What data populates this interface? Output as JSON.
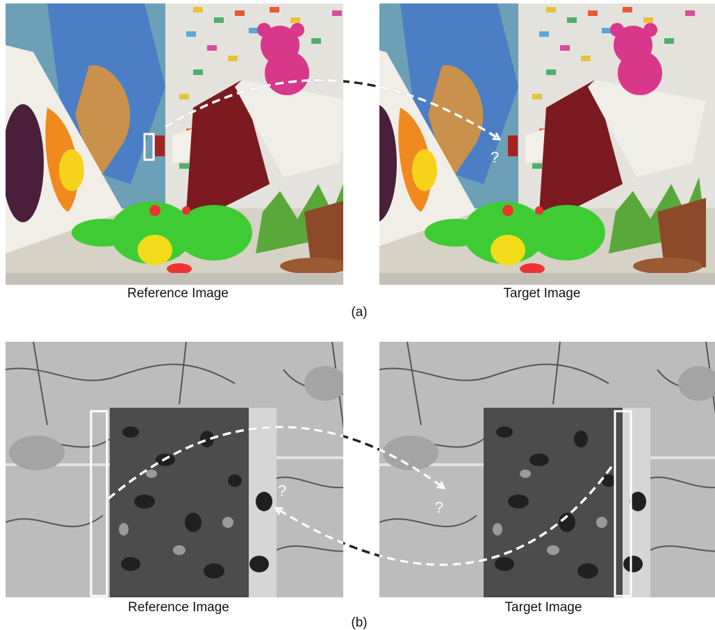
{
  "panels": [
    {
      "label": "(a)",
      "reference_caption": "Reference Image",
      "target_caption": "Target Image",
      "question_marks": [
        "?"
      ]
    },
    {
      "label": "(b)",
      "reference_caption": "Reference Image",
      "target_caption": "Target Image",
      "question_marks": [
        "?",
        "?"
      ]
    }
  ]
}
